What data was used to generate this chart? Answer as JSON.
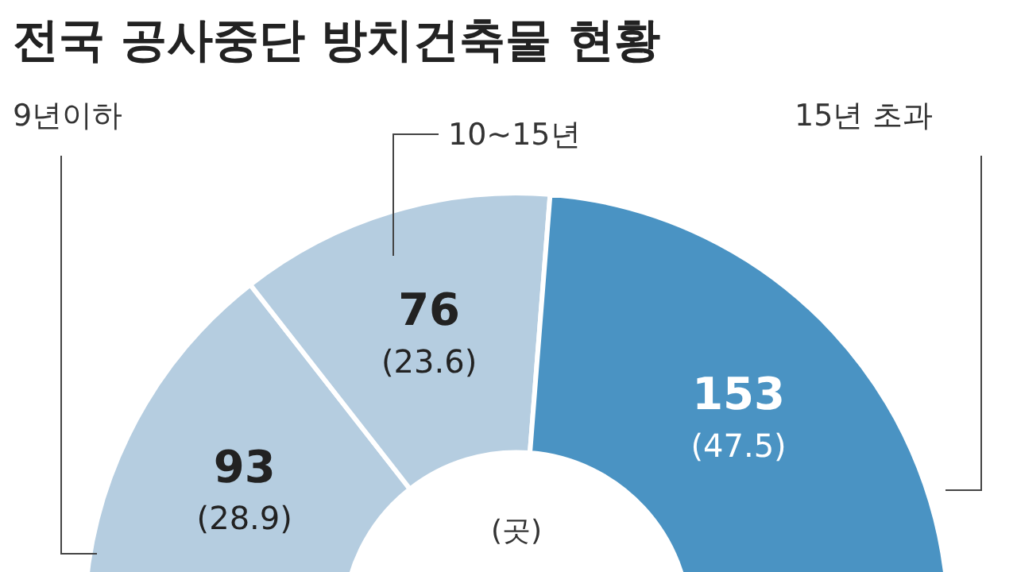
{
  "chart_data": {
    "type": "donut",
    "title": "전국 공사중단 방치건축물 현황",
    "categories": [
      "9년이하",
      "10~15년",
      "15년 초과"
    ],
    "values": [
      93,
      76,
      153
    ],
    "colors": [
      "#b5cde0",
      "#b5cde0",
      "#4a93c3"
    ],
    "value_labels": [
      "93\n(28.9)",
      "76\n(23.6)",
      "153\n(47.5)"
    ],
    "annotations": [
      "(곳)"
    ],
    "legend": false
  }
}
